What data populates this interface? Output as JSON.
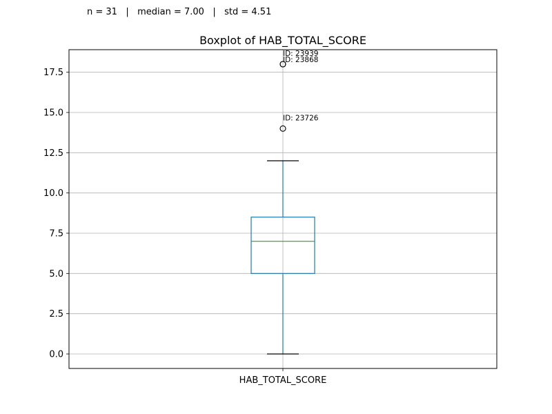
{
  "stats_caption": "n = 31   |   median = 7.00   |   std = 4.51",
  "chart_data": {
    "type": "box",
    "title": "Boxplot of HAB_TOTAL_SCORE",
    "category": "HAB_TOTAL_SCORE",
    "ylim": [
      -0.9,
      18.9
    ],
    "yticks": [
      0.0,
      2.5,
      5.0,
      7.5,
      10.0,
      12.5,
      15.0,
      17.5
    ],
    "ytick_labels": [
      "0.0",
      "2.5",
      "5.0",
      "7.5",
      "10.0",
      "12.5",
      "15.0",
      "17.5"
    ],
    "grid": true,
    "box": {
      "whisker_low": 0,
      "q1": 5.0,
      "median": 7.0,
      "q3": 8.5,
      "whisker_high": 12
    },
    "outliers": [
      {
        "value": 18,
        "label": "ID: 23939"
      },
      {
        "value": 18,
        "label": "ID: 23868"
      },
      {
        "value": 14,
        "label": "ID: 23726"
      }
    ],
    "colors": {
      "box": "#1f77b4",
      "median": "#2ca02c",
      "whisker_cap": "#000000",
      "grid": "#b0b0b0",
      "outlier_edge": "#000000"
    }
  }
}
